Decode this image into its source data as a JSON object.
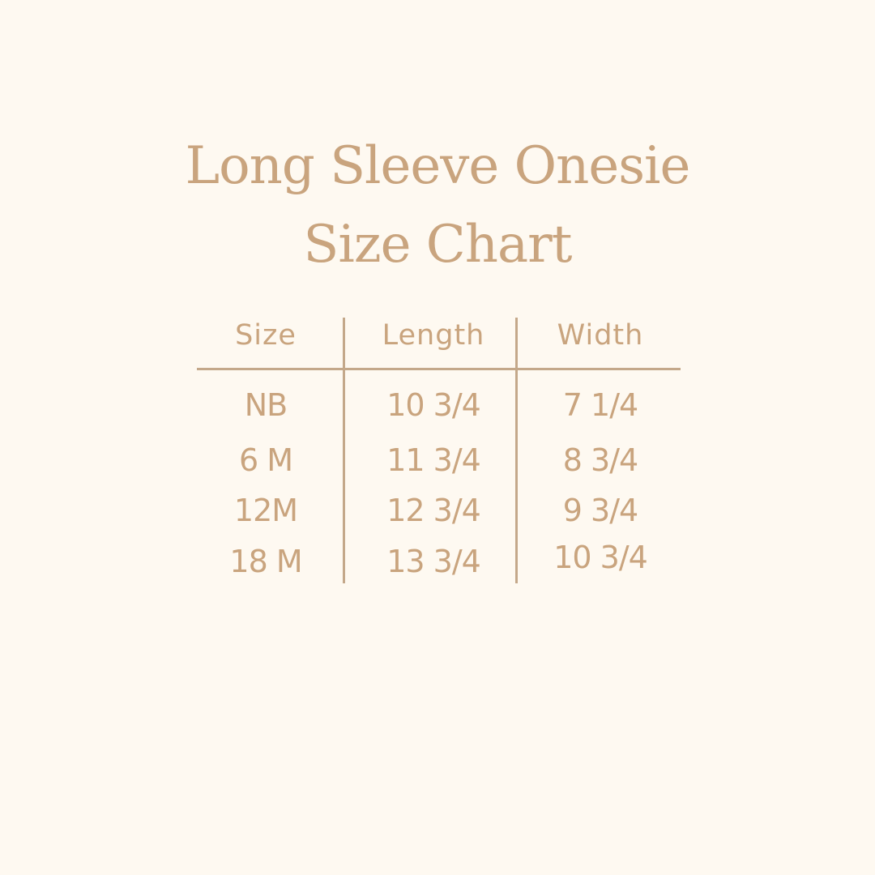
{
  "title": {
    "line1": "Long Sleeve Onesie",
    "line2": "Size Chart"
  },
  "table": {
    "headers": [
      "Size",
      "Length",
      "Width"
    ],
    "rows": [
      [
        "NB",
        "10 3/4",
        "7 1/4"
      ],
      [
        "6 M",
        "11 3/4",
        "8 3/4"
      ],
      [
        "12M",
        "12 3/4",
        "9 3/4"
      ],
      [
        "18 M",
        "13 3/4",
        "10 3/4"
      ]
    ]
  },
  "colors": {
    "background": "#fef9f1",
    "text": "#c9a47e",
    "lines": "#c4a88a"
  }
}
